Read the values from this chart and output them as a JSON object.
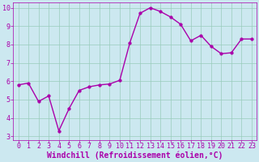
{
  "x": [
    0,
    1,
    2,
    3,
    4,
    5,
    6,
    7,
    8,
    9,
    10,
    11,
    12,
    13,
    14,
    15,
    16,
    17,
    18,
    19,
    20,
    21,
    22,
    23
  ],
  "y": [
    5.8,
    5.9,
    4.9,
    5.2,
    3.3,
    4.5,
    5.5,
    5.7,
    5.8,
    5.85,
    6.05,
    8.1,
    9.7,
    10.0,
    9.8,
    9.5,
    9.1,
    8.2,
    8.5,
    7.9,
    7.5,
    7.55,
    8.3,
    8.3
  ],
  "line_color": "#aa00aa",
  "marker_color": "#aa00aa",
  "bg_color": "#cce8f0",
  "grid_color": "#99ccbb",
  "xlabel": "Windchill (Refroidissement éolien,°C)",
  "xlabel_color": "#aa00aa",
  "ylim_min": 2.8,
  "ylim_max": 10.3,
  "xlim_min": -0.5,
  "xlim_max": 23.5,
  "yticks": [
    3,
    4,
    5,
    6,
    7,
    8,
    9,
    10
  ],
  "xticks": [
    0,
    1,
    2,
    3,
    4,
    5,
    6,
    7,
    8,
    9,
    10,
    11,
    12,
    13,
    14,
    15,
    16,
    17,
    18,
    19,
    20,
    21,
    22,
    23
  ],
  "tick_color": "#aa00aa",
  "tick_fontsize": 6,
  "xlabel_fontsize": 7,
  "line_width": 1.0,
  "marker_size": 2.5
}
